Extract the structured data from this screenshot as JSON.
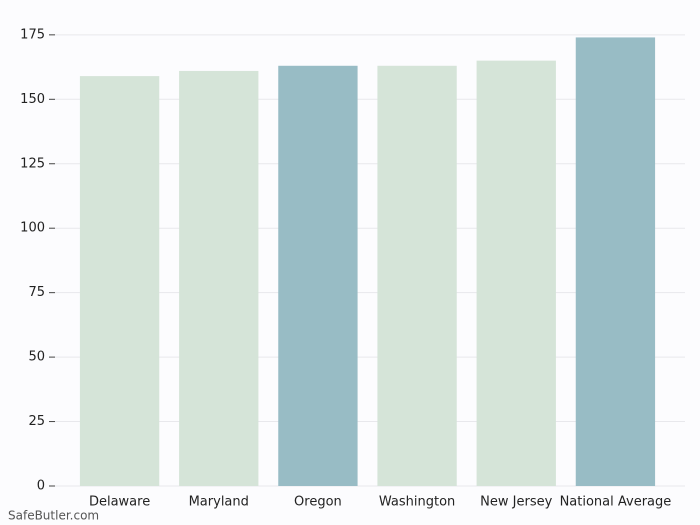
{
  "chart_data": {
    "type": "bar",
    "categories": [
      "Delaware",
      "Maryland",
      "Oregon",
      "Washington",
      "New Jersey",
      "National Average"
    ],
    "values": [
      159,
      161,
      163,
      163,
      165,
      174
    ],
    "colors": [
      "#d5e4d8",
      "#d5e4d8",
      "#98bcc5",
      "#d5e4d8",
      "#d5e4d8",
      "#98bcc5"
    ],
    "ylim": [
      0,
      182.7
    ],
    "yticks": [
      0,
      25,
      50,
      75,
      100,
      125,
      150,
      175
    ],
    "grid": true,
    "watermark": "SafeButler.com"
  }
}
